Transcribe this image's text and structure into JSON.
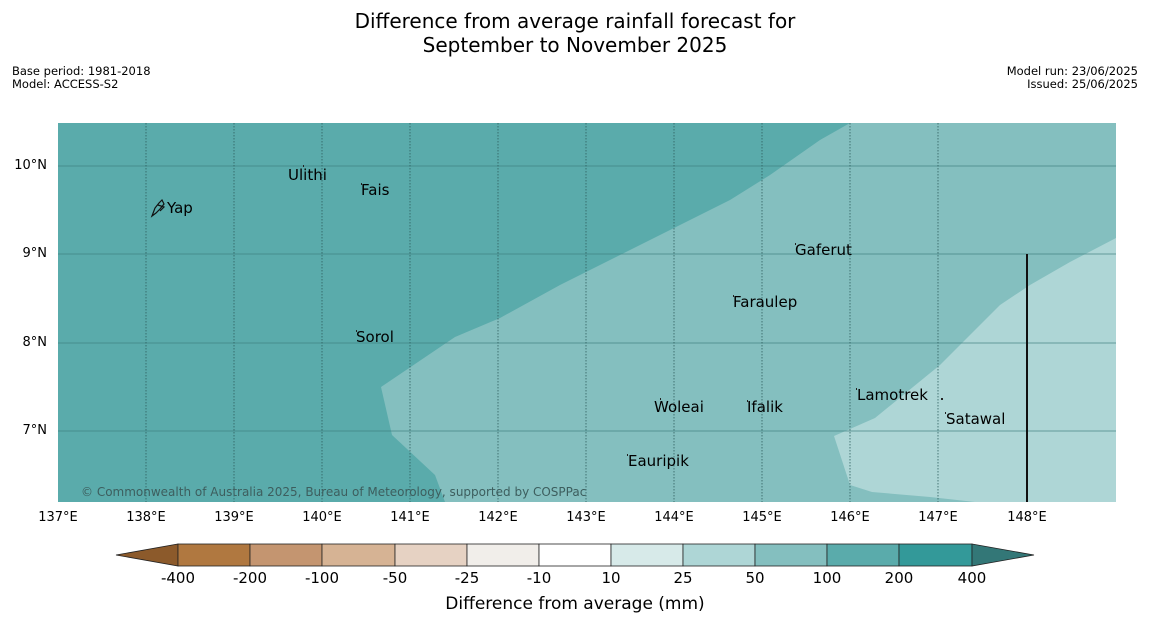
{
  "title": {
    "line1": "Difference from average rainfall forecast for",
    "line2": "September to November 2025"
  },
  "meta": {
    "base_period": "Base period: 1981-2018",
    "model": "Model: ACCESS-S2",
    "model_run": "Model run: 23/06/2025",
    "issued": "Issued: 25/06/2025"
  },
  "map": {
    "lat_labels": [
      "10°N",
      "9°N",
      "8°N",
      "7°N"
    ],
    "lon_labels": [
      "137°E",
      "138°E",
      "139°E",
      "140°E",
      "141°E",
      "142°E",
      "143°E",
      "144°E",
      "145°E",
      "146°E",
      "147°E",
      "148°E"
    ],
    "places": [
      "Ulithi",
      "Yap",
      "Fais",
      "Gaferut",
      "Faraulep",
      "Sorol",
      "Lamotrek",
      "Woleai",
      "Ifalik",
      "Satawal",
      "Eauripik"
    ],
    "copyright": "© Commonwealth of Australia 2025, Bureau of Meteorology, supported by COSPPac"
  },
  "colorbar": {
    "ticks": [
      "-400",
      "-200",
      "-100",
      "-50",
      "-25",
      "-10",
      "10",
      "25",
      "50",
      "100",
      "200",
      "400"
    ],
    "label": "Difference from average (mm)",
    "colors": [
      "#8c5a2b",
      "#b07840",
      "#c49570",
      "#d6b394",
      "#e6d2c3",
      "#f1eeea",
      "#ffffff",
      "#d7eae9",
      "#aed6d6",
      "#84bfbf",
      "#5aabab",
      "#339999",
      "#337777"
    ]
  }
}
